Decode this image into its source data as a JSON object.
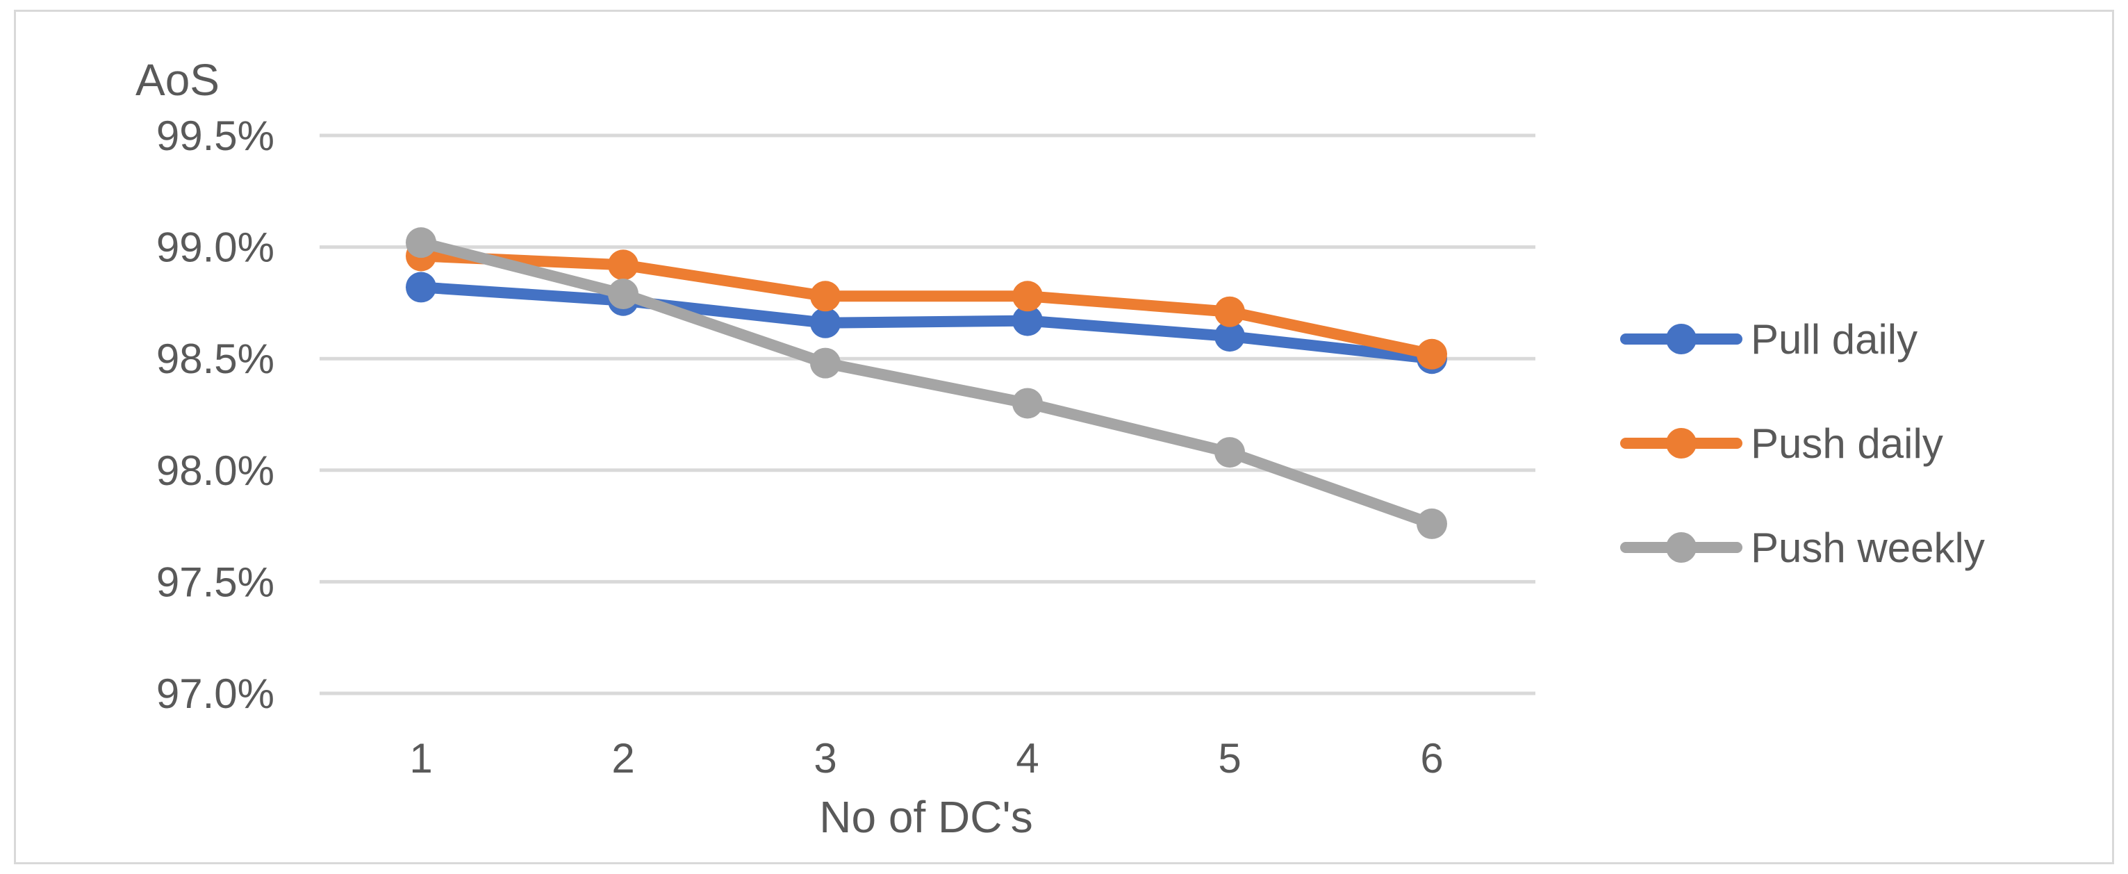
{
  "chart_data": {
    "type": "line",
    "title": "",
    "xlabel": "No of DC's",
    "ylabel": "AoS",
    "categories": [
      "1",
      "2",
      "3",
      "4",
      "5",
      "6"
    ],
    "ylim": [
      97.0,
      99.5
    ],
    "yticks": [
      97.0,
      97.5,
      98.0,
      98.5,
      99.0,
      99.5
    ],
    "ytick_labels": [
      "97.0%",
      "97.5%",
      "98.0%",
      "98.5%",
      "99.0%",
      "99.5%"
    ],
    "grid": true,
    "legend_position": "right",
    "series": [
      {
        "name": "Pull daily",
        "color": "#4472c4",
        "values": [
          98.82,
          98.76,
          98.66,
          98.67,
          98.6,
          98.5
        ]
      },
      {
        "name": "Push daily",
        "color": "#ed7d31",
        "values": [
          98.96,
          98.92,
          98.78,
          98.78,
          98.71,
          98.52
        ]
      },
      {
        "name": "Push weekly",
        "color": "#a5a5a5",
        "values": [
          99.02,
          98.79,
          98.48,
          98.3,
          98.08,
          97.76
        ]
      }
    ]
  }
}
